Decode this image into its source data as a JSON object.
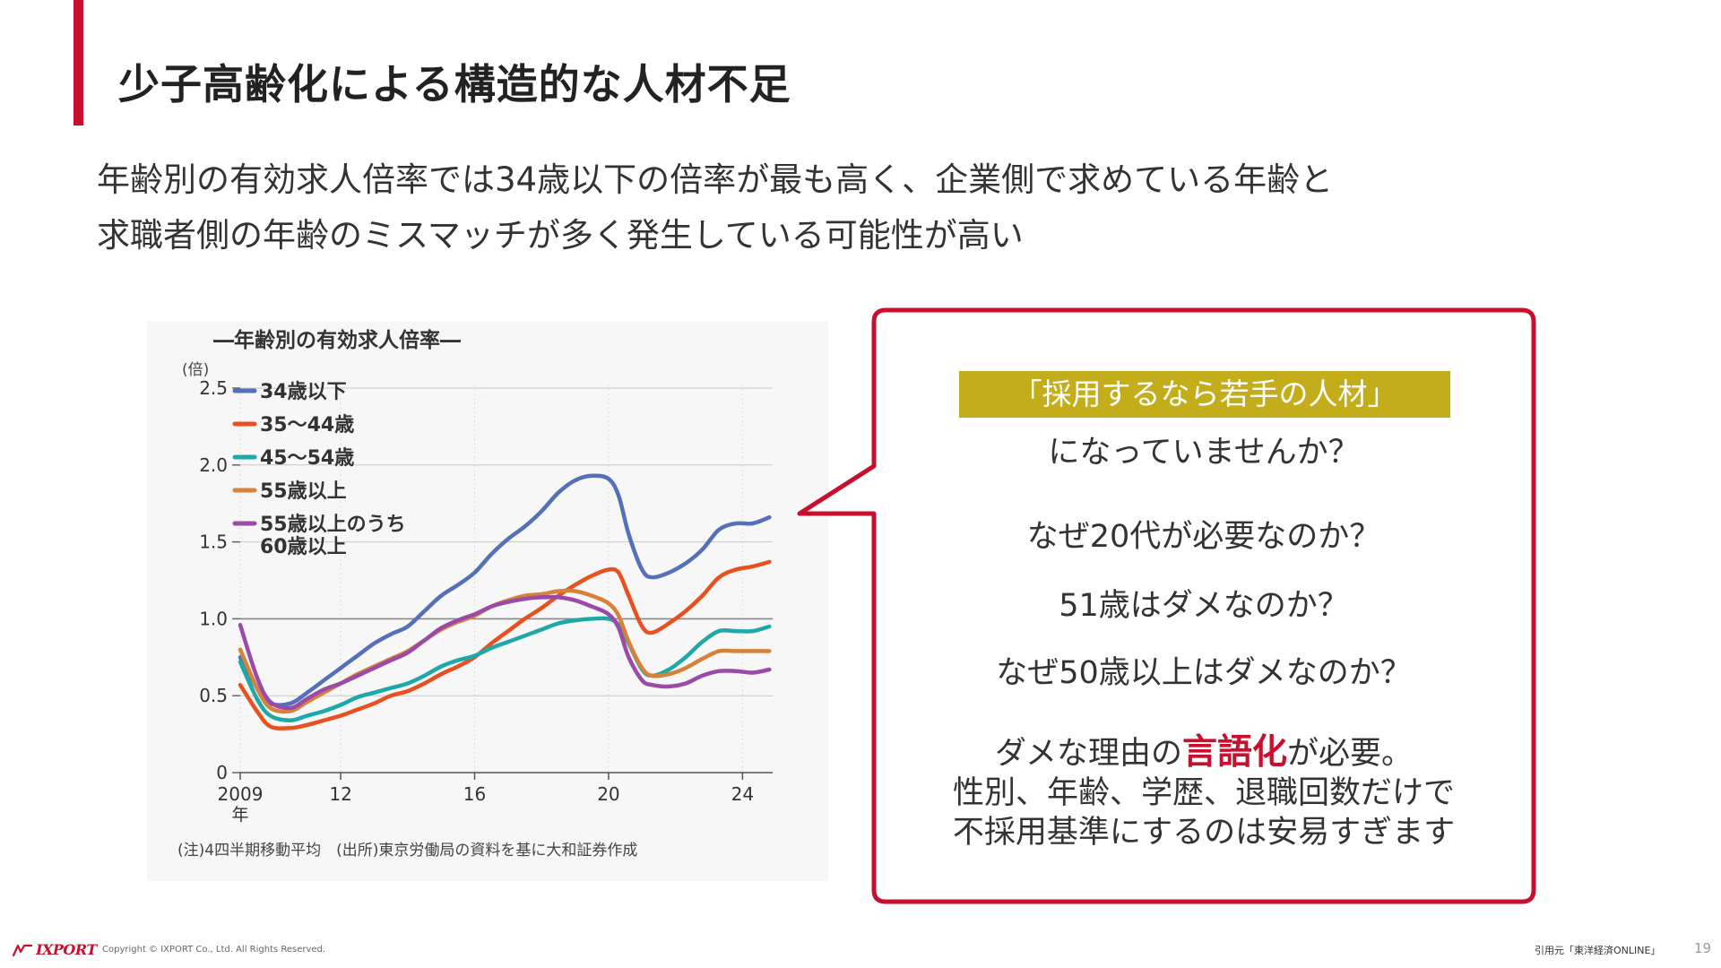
{
  "slide": {
    "title": "少子高齢化による構造的な人材不足",
    "lead_lines": [
      "年齢別の有効求人倍率では34歳以下の倍率が最も高く、企業側で求めている年齢と",
      "求職者側の年齢のミスマッチが多く発生している可能性が高い"
    ],
    "accent_color": "#c8102e"
  },
  "chart_data": {
    "type": "line",
    "title": "―年齢別の有効求人倍率―",
    "ylabel": "(倍)",
    "xlabel": "",
    "ylim": [
      0,
      2.5
    ],
    "xlim": [
      2009,
      2024.9
    ],
    "x_tick_labels": [
      {
        "x": 2009,
        "label": "2009",
        "sub": "年"
      },
      {
        "x": 2012,
        "label": "12",
        "sub": ""
      },
      {
        "x": 2016,
        "label": "16",
        "sub": ""
      },
      {
        "x": 2020,
        "label": "20",
        "sub": ""
      },
      {
        "x": 2024,
        "label": "24",
        "sub": ""
      }
    ],
    "y_ticks": [
      {
        "v": 0,
        "label": "0"
      },
      {
        "v": 0.5,
        "label": "0.5"
      },
      {
        "v": 1.0,
        "label": "1.0"
      },
      {
        "v": 1.5,
        "label": "1.5"
      },
      {
        "v": 2.0,
        "label": "2.0"
      },
      {
        "v": 2.5,
        "label": "2.5"
      }
    ],
    "reference_line": 1.0,
    "legend_position": "top-left",
    "series": [
      {
        "name": "34歳以下",
        "color": "#5470b8",
        "points": [
          [
            2009.0,
            0.75
          ],
          [
            2009.5,
            0.55
          ],
          [
            2009.9,
            0.45
          ],
          [
            2010.5,
            0.45
          ],
          [
            2011.0,
            0.52
          ],
          [
            2011.5,
            0.6
          ],
          [
            2012.0,
            0.68
          ],
          [
            2012.5,
            0.76
          ],
          [
            2013.0,
            0.84
          ],
          [
            2013.5,
            0.9
          ],
          [
            2014.0,
            0.95
          ],
          [
            2014.5,
            1.05
          ],
          [
            2015.0,
            1.15
          ],
          [
            2015.5,
            1.22
          ],
          [
            2016.0,
            1.3
          ],
          [
            2016.5,
            1.42
          ],
          [
            2017.0,
            1.52
          ],
          [
            2017.5,
            1.6
          ],
          [
            2018.0,
            1.7
          ],
          [
            2018.5,
            1.82
          ],
          [
            2019.0,
            1.9
          ],
          [
            2019.5,
            1.93
          ],
          [
            2020.0,
            1.91
          ],
          [
            2020.3,
            1.8
          ],
          [
            2020.6,
            1.55
          ],
          [
            2021.0,
            1.32
          ],
          [
            2021.3,
            1.27
          ],
          [
            2021.8,
            1.3
          ],
          [
            2022.3,
            1.36
          ],
          [
            2022.8,
            1.45
          ],
          [
            2023.3,
            1.58
          ],
          [
            2023.8,
            1.62
          ],
          [
            2024.3,
            1.62
          ],
          [
            2024.8,
            1.66
          ]
        ]
      },
      {
        "name": "35～44歳",
        "color": "#e85020",
        "points": [
          [
            2009.0,
            0.57
          ],
          [
            2009.5,
            0.4
          ],
          [
            2009.9,
            0.3
          ],
          [
            2010.5,
            0.29
          ],
          [
            2011.0,
            0.31
          ],
          [
            2011.5,
            0.34
          ],
          [
            2012.0,
            0.37
          ],
          [
            2012.5,
            0.41
          ],
          [
            2013.0,
            0.45
          ],
          [
            2013.5,
            0.5
          ],
          [
            2014.0,
            0.53
          ],
          [
            2014.5,
            0.58
          ],
          [
            2015.0,
            0.64
          ],
          [
            2015.5,
            0.69
          ],
          [
            2016.0,
            0.75
          ],
          [
            2016.5,
            0.84
          ],
          [
            2017.0,
            0.92
          ],
          [
            2017.5,
            1.0
          ],
          [
            2018.0,
            1.07
          ],
          [
            2018.5,
            1.15
          ],
          [
            2019.0,
            1.22
          ],
          [
            2019.5,
            1.28
          ],
          [
            2020.0,
            1.32
          ],
          [
            2020.3,
            1.3
          ],
          [
            2020.6,
            1.15
          ],
          [
            2021.0,
            0.95
          ],
          [
            2021.3,
            0.91
          ],
          [
            2021.8,
            0.97
          ],
          [
            2022.3,
            1.05
          ],
          [
            2022.8,
            1.15
          ],
          [
            2023.3,
            1.27
          ],
          [
            2023.8,
            1.32
          ],
          [
            2024.3,
            1.34
          ],
          [
            2024.8,
            1.37
          ]
        ]
      },
      {
        "name": "45～54歳",
        "color": "#1fa8a8",
        "points": [
          [
            2009.0,
            0.72
          ],
          [
            2009.5,
            0.48
          ],
          [
            2009.9,
            0.37
          ],
          [
            2010.5,
            0.34
          ],
          [
            2011.0,
            0.37
          ],
          [
            2011.5,
            0.4
          ],
          [
            2012.0,
            0.44
          ],
          [
            2012.5,
            0.49
          ],
          [
            2013.0,
            0.52
          ],
          [
            2013.5,
            0.55
          ],
          [
            2014.0,
            0.58
          ],
          [
            2014.5,
            0.63
          ],
          [
            2015.0,
            0.69
          ],
          [
            2015.5,
            0.73
          ],
          [
            2016.0,
            0.76
          ],
          [
            2016.5,
            0.81
          ],
          [
            2017.0,
            0.85
          ],
          [
            2017.5,
            0.89
          ],
          [
            2018.0,
            0.93
          ],
          [
            2018.5,
            0.97
          ],
          [
            2019.0,
            0.99
          ],
          [
            2019.5,
            1.0
          ],
          [
            2020.0,
            1.0
          ],
          [
            2020.3,
            0.96
          ],
          [
            2020.6,
            0.84
          ],
          [
            2021.0,
            0.67
          ],
          [
            2021.3,
            0.63
          ],
          [
            2021.8,
            0.67
          ],
          [
            2022.3,
            0.75
          ],
          [
            2022.8,
            0.85
          ],
          [
            2023.3,
            0.92
          ],
          [
            2023.8,
            0.92
          ],
          [
            2024.3,
            0.92
          ],
          [
            2024.8,
            0.95
          ]
        ]
      },
      {
        "name": "55歳以上",
        "color": "#d6823a",
        "points": [
          [
            2009.0,
            0.8
          ],
          [
            2009.5,
            0.55
          ],
          [
            2009.9,
            0.42
          ],
          [
            2010.5,
            0.4
          ],
          [
            2011.0,
            0.46
          ],
          [
            2011.5,
            0.52
          ],
          [
            2012.0,
            0.58
          ],
          [
            2012.5,
            0.64
          ],
          [
            2013.0,
            0.69
          ],
          [
            2013.5,
            0.74
          ],
          [
            2014.0,
            0.79
          ],
          [
            2014.5,
            0.86
          ],
          [
            2015.0,
            0.93
          ],
          [
            2015.5,
            0.98
          ],
          [
            2016.0,
            1.02
          ],
          [
            2016.5,
            1.08
          ],
          [
            2017.0,
            1.12
          ],
          [
            2017.5,
            1.15
          ],
          [
            2018.0,
            1.16
          ],
          [
            2018.5,
            1.18
          ],
          [
            2019.0,
            1.18
          ],
          [
            2019.5,
            1.15
          ],
          [
            2020.0,
            1.1
          ],
          [
            2020.3,
            1.02
          ],
          [
            2020.6,
            0.85
          ],
          [
            2021.0,
            0.68
          ],
          [
            2021.3,
            0.63
          ],
          [
            2021.8,
            0.64
          ],
          [
            2022.3,
            0.68
          ],
          [
            2022.8,
            0.74
          ],
          [
            2023.3,
            0.79
          ],
          [
            2023.8,
            0.79
          ],
          [
            2024.3,
            0.79
          ],
          [
            2024.8,
            0.79
          ]
        ]
      },
      {
        "name": "55歳以上のうち\n60歳以上",
        "color": "#9a4aa8",
        "points": [
          [
            2009.0,
            0.96
          ],
          [
            2009.5,
            0.62
          ],
          [
            2009.9,
            0.46
          ],
          [
            2010.5,
            0.42
          ],
          [
            2011.0,
            0.48
          ],
          [
            2011.5,
            0.54
          ],
          [
            2012.0,
            0.58
          ],
          [
            2012.5,
            0.63
          ],
          [
            2013.0,
            0.68
          ],
          [
            2013.5,
            0.73
          ],
          [
            2014.0,
            0.78
          ],
          [
            2014.5,
            0.86
          ],
          [
            2015.0,
            0.94
          ],
          [
            2015.5,
            0.99
          ],
          [
            2016.0,
            1.03
          ],
          [
            2016.5,
            1.08
          ],
          [
            2017.0,
            1.11
          ],
          [
            2017.5,
            1.13
          ],
          [
            2018.0,
            1.14
          ],
          [
            2018.5,
            1.14
          ],
          [
            2019.0,
            1.12
          ],
          [
            2019.5,
            1.08
          ],
          [
            2020.0,
            1.03
          ],
          [
            2020.3,
            0.94
          ],
          [
            2020.6,
            0.75
          ],
          [
            2021.0,
            0.6
          ],
          [
            2021.3,
            0.57
          ],
          [
            2021.8,
            0.56
          ],
          [
            2022.3,
            0.58
          ],
          [
            2022.8,
            0.63
          ],
          [
            2023.3,
            0.66
          ],
          [
            2023.8,
            0.66
          ],
          [
            2024.3,
            0.65
          ],
          [
            2024.8,
            0.67
          ]
        ]
      }
    ],
    "note": "(注)4四半期移動平均　(出所)東京労働局の資料を基に大和証券作成"
  },
  "callout": {
    "border_color": "#c8102e",
    "tag_color": "#c4ad1a",
    "tag": "「採用するなら若手の人材」",
    "q1": "になっていませんか？",
    "q2": "なぜ20代が必要なのか？",
    "q3": "51歳はダメなのか？",
    "q4": "なぜ50歳以上はダメなのか？",
    "q5_pre": "ダメな理由の",
    "q5_em": "言語化",
    "q5_post": "が必要。",
    "q6": "性別、年齢、学歴、退職回数だけで",
    "q7": "不採用基準にするのは安易すぎます"
  },
  "footer": {
    "logo_text": "IXPORT",
    "copyright": "Copyright © IXPORT Co., Ltd. All Rights Reserved.",
    "source": "引用元「東洋経済ONLINE」",
    "page": "19"
  }
}
